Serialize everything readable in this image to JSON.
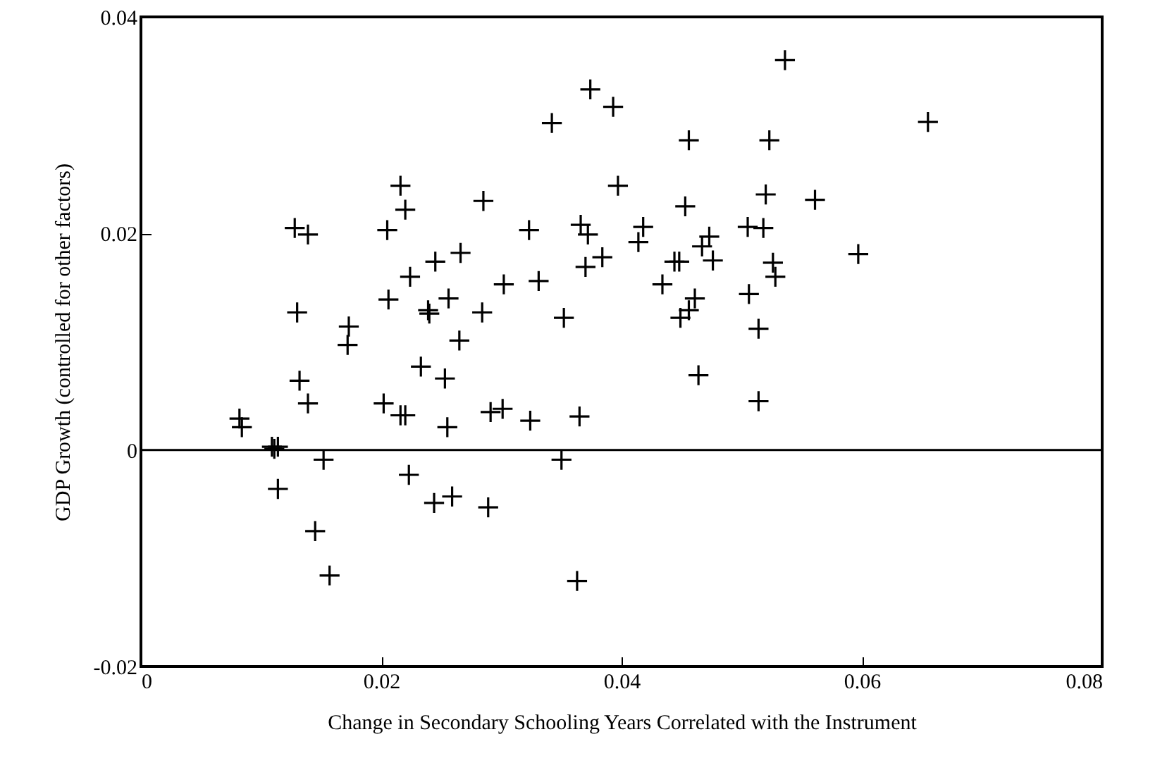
{
  "chart_data": {
    "type": "scatter",
    "xlabel": "Change in Secondary Schooling Years Correlated with the Instrument",
    "ylabel": "GDP Growth (controlled for other factors)",
    "xlim": [
      0,
      0.08
    ],
    "xticks": [
      0,
      0.02,
      0.04,
      0.06,
      0.08
    ],
    "ylim": [
      -0.02,
      0.04
    ],
    "yticks": [
      -0.02,
      0,
      0.02,
      0.04
    ],
    "grid": false,
    "marker": "cross",
    "ref_lines": [
      {
        "axis": "y",
        "value": 0,
        "color": "#000000"
      }
    ],
    "series": [
      {
        "color": "#000000",
        "x": [
          0.0082,
          0.0084,
          0.0109,
          0.0114,
          0.0111,
          0.0114,
          0.0128,
          0.0139,
          0.013,
          0.0132,
          0.0139,
          0.0145,
          0.0152,
          0.0157,
          0.0173,
          0.0172,
          0.0205,
          0.0206,
          0.0202,
          0.0216,
          0.022,
          0.0216,
          0.022,
          0.0224,
          0.0223,
          0.0233,
          0.0245,
          0.0239,
          0.024,
          0.0244,
          0.0256,
          0.0253,
          0.0255,
          0.0259,
          0.0266,
          0.0265,
          0.0285,
          0.0284,
          0.0289,
          0.0291,
          0.0301,
          0.0302,
          0.0323,
          0.0324,
          0.0331,
          0.0342,
          0.0352,
          0.035,
          0.0363,
          0.0365,
          0.0366,
          0.0372,
          0.037,
          0.0374,
          0.0384,
          0.0393,
          0.0397,
          0.0418,
          0.0414,
          0.0434,
          0.0444,
          0.0448,
          0.0449,
          0.0456,
          0.0453,
          0.0456,
          0.0461,
          0.0464,
          0.0473,
          0.0467,
          0.0476,
          0.0505,
          0.0506,
          0.0514,
          0.0514,
          0.0518,
          0.052,
          0.0523,
          0.0526,
          0.0528,
          0.0536,
          0.0561,
          0.0597,
          0.0655
        ],
        "values": [
          0.0029,
          0.0021,
          0.0003,
          0.0003,
          0.0001,
          -0.0036,
          0.0205,
          0.0199,
          0.0127,
          0.0064,
          0.0043,
          -0.0075,
          -0.0009,
          -0.0116,
          0.0114,
          0.0097,
          0.0203,
          0.0139,
          0.0043,
          0.0032,
          0.0032,
          0.0244,
          0.0222,
          0.016,
          -0.0023,
          0.0077,
          0.0174,
          0.0129,
          0.0126,
          -0.0049,
          0.014,
          0.0066,
          0.0021,
          -0.0043,
          0.0182,
          0.0101,
          0.023,
          0.0127,
          -0.0053,
          0.0035,
          0.0038,
          0.0153,
          0.0203,
          0.0027,
          0.0156,
          0.0302,
          0.0122,
          -0.0009,
          -0.0121,
          0.0031,
          0.0208,
          0.0199,
          0.0169,
          0.0333,
          0.0178,
          0.0317,
          0.0244,
          0.0206,
          0.0192,
          0.0153,
          0.0174,
          0.0174,
          0.0122,
          0.0129,
          0.0225,
          0.0286,
          0.014,
          0.0069,
          0.0197,
          0.0188,
          0.0175,
          0.0206,
          0.0144,
          0.0112,
          0.0045,
          0.0205,
          0.0236,
          0.0286,
          0.0173,
          0.016,
          0.036,
          0.0231,
          0.0181,
          0.0303
        ]
      }
    ]
  }
}
